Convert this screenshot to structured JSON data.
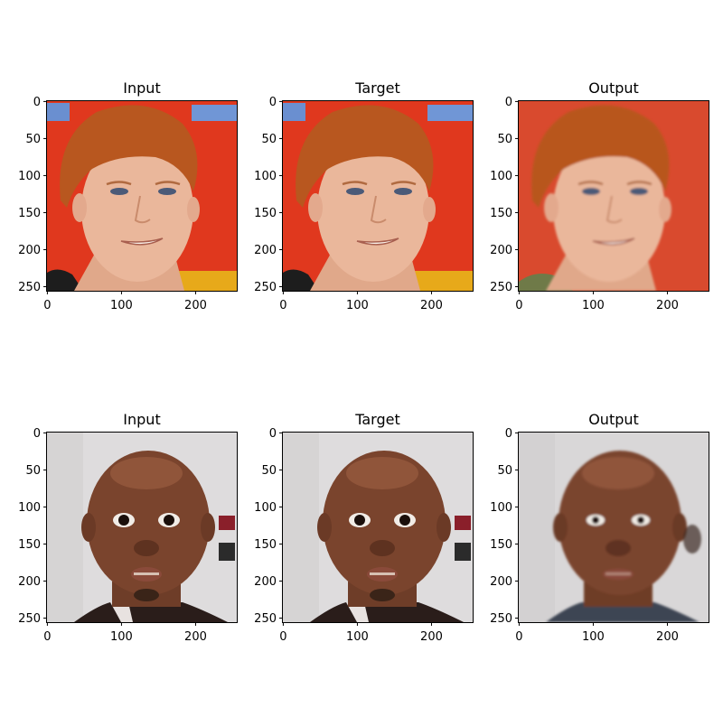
{
  "figure": {
    "panels": [
      {
        "row": 1,
        "title": "Input",
        "subject": "red-haired young man, red background",
        "palette": "ginger"
      },
      {
        "row": 1,
        "title": "Target",
        "subject": "red-haired young man, red background",
        "palette": "ginger"
      },
      {
        "row": 1,
        "title": "Output",
        "subject": "red-haired young man, red background (reconstructed)",
        "palette": "ginger-blur"
      },
      {
        "row": 2,
        "title": "Input",
        "subject": "bald man with surprised expression, white backdrop",
        "palette": "bald"
      },
      {
        "row": 2,
        "title": "Target",
        "subject": "bald man with surprised expression, white backdrop",
        "palette": "bald"
      },
      {
        "row": 2,
        "title": "Output",
        "subject": "bald man, white backdrop (reconstructed)",
        "palette": "bald-blur"
      }
    ],
    "axis": {
      "x_ticks": [
        "0",
        "100",
        "200"
      ],
      "y_ticks": [
        "0",
        "50",
        "100",
        "150",
        "200",
        "250"
      ],
      "x_values": [
        0,
        100,
        200
      ],
      "y_values": [
        0,
        50,
        100,
        150,
        200,
        250
      ],
      "range": [
        0,
        256
      ]
    }
  }
}
